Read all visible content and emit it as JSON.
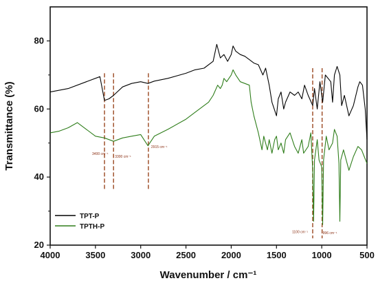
{
  "chart_data": {
    "type": "line",
    "xlabel": "Wavenumber / cm⁻¹",
    "ylabel": "Transmittance  (%)",
    "xlim": [
      4000,
      500
    ],
    "ylim": [
      20,
      90
    ],
    "x_ticks": [
      4000,
      3500,
      3000,
      2500,
      2000,
      1500,
      1000,
      500
    ],
    "y_ticks": [
      20,
      40,
      60,
      80
    ],
    "legend_position": "bottom-left",
    "colors": {
      "TPT-P": "#000000",
      "TPTH-P": "#2e7d1a",
      "annotation": "#a0522d"
    },
    "series": [
      {
        "name": "TPT-P",
        "color": "#000000",
        "points": [
          [
            4000,
            65
          ],
          [
            3800,
            66
          ],
          [
            3600,
            68
          ],
          [
            3450,
            69.5
          ],
          [
            3400,
            62.5
          ],
          [
            3350,
            63
          ],
          [
            3300,
            64
          ],
          [
            3200,
            66.5
          ],
          [
            3100,
            67.5
          ],
          [
            3000,
            68
          ],
          [
            2920,
            67.5
          ],
          [
            2850,
            68.2
          ],
          [
            2700,
            69
          ],
          [
            2500,
            70.5
          ],
          [
            2400,
            71.5
          ],
          [
            2300,
            72
          ],
          [
            2200,
            74
          ],
          [
            2160,
            79
          ],
          [
            2120,
            75
          ],
          [
            2080,
            76
          ],
          [
            2040,
            74
          ],
          [
            2000,
            76
          ],
          [
            1980,
            78.5
          ],
          [
            1950,
            77
          ],
          [
            1900,
            76
          ],
          [
            1850,
            75.5
          ],
          [
            1800,
            74.5
          ],
          [
            1750,
            73.5
          ],
          [
            1700,
            73
          ],
          [
            1650,
            70
          ],
          [
            1620,
            72
          ],
          [
            1580,
            67
          ],
          [
            1550,
            62
          ],
          [
            1500,
            58
          ],
          [
            1480,
            63
          ],
          [
            1450,
            65
          ],
          [
            1420,
            60
          ],
          [
            1400,
            62
          ],
          [
            1350,
            65
          ],
          [
            1300,
            64
          ],
          [
            1260,
            65
          ],
          [
            1220,
            63
          ],
          [
            1190,
            67
          ],
          [
            1150,
            64
          ],
          [
            1100,
            61
          ],
          [
            1080,
            66
          ],
          [
            1050,
            60
          ],
          [
            1020,
            68
          ],
          [
            990,
            62
          ],
          [
            960,
            70
          ],
          [
            900,
            68
          ],
          [
            880,
            62
          ],
          [
            860,
            70
          ],
          [
            830,
            72.5
          ],
          [
            800,
            70
          ],
          [
            780,
            61
          ],
          [
            750,
            64
          ],
          [
            700,
            58
          ],
          [
            650,
            61
          ],
          [
            600,
            66.5
          ],
          [
            580,
            68
          ],
          [
            550,
            67
          ],
          [
            520,
            60
          ],
          [
            500,
            51
          ]
        ]
      },
      {
        "name": "TPTH-P",
        "color": "#2e7d1a",
        "points": [
          [
            4000,
            53
          ],
          [
            3900,
            53.5
          ],
          [
            3800,
            54.5
          ],
          [
            3700,
            56
          ],
          [
            3600,
            54
          ],
          [
            3500,
            52
          ],
          [
            3400,
            51.5
          ],
          [
            3300,
            50.5
          ],
          [
            3200,
            51.5
          ],
          [
            3100,
            52
          ],
          [
            3000,
            52.5
          ],
          [
            2920,
            49.2
          ],
          [
            2850,
            52
          ],
          [
            2700,
            54
          ],
          [
            2500,
            57
          ],
          [
            2400,
            59
          ],
          [
            2300,
            61
          ],
          [
            2250,
            62
          ],
          [
            2200,
            64
          ],
          [
            2150,
            67
          ],
          [
            2120,
            66
          ],
          [
            2100,
            67
          ],
          [
            2080,
            69
          ],
          [
            2050,
            68
          ],
          [
            2000,
            70
          ],
          [
            1980,
            71.5
          ],
          [
            1950,
            70
          ],
          [
            1900,
            68
          ],
          [
            1850,
            67.5
          ],
          [
            1800,
            67
          ],
          [
            1780,
            62
          ],
          [
            1750,
            58
          ],
          [
            1700,
            53
          ],
          [
            1660,
            48
          ],
          [
            1640,
            52
          ],
          [
            1600,
            48
          ],
          [
            1580,
            51
          ],
          [
            1550,
            47
          ],
          [
            1520,
            51
          ],
          [
            1500,
            52
          ],
          [
            1480,
            48
          ],
          [
            1450,
            50
          ],
          [
            1420,
            47
          ],
          [
            1400,
            51
          ],
          [
            1350,
            53
          ],
          [
            1300,
            49
          ],
          [
            1260,
            47
          ],
          [
            1220,
            51
          ],
          [
            1200,
            47
          ],
          [
            1150,
            49
          ],
          [
            1120,
            53
          ],
          [
            1100,
            42
          ],
          [
            1090,
            27
          ],
          [
            1080,
            45
          ],
          [
            1050,
            51
          ],
          [
            1030,
            45
          ],
          [
            1000,
            43
          ],
          [
            990,
            26
          ],
          [
            980,
            45
          ],
          [
            950,
            52
          ],
          [
            920,
            48
          ],
          [
            880,
            50
          ],
          [
            860,
            54
          ],
          [
            830,
            52
          ],
          [
            810,
            44
          ],
          [
            800,
            27
          ],
          [
            790,
            45
          ],
          [
            760,
            48
          ],
          [
            700,
            42
          ],
          [
            650,
            46
          ],
          [
            600,
            49
          ],
          [
            560,
            48
          ],
          [
            530,
            46
          ],
          [
            500,
            44
          ]
        ]
      }
    ],
    "annotations": [
      {
        "x": 3400,
        "label": "3400 cm⁻¹"
      },
      {
        "x": 3300,
        "label": "3300 cm⁻¹"
      },
      {
        "x": 2915,
        "label": "2915 cm⁻¹"
      },
      {
        "x": 1100,
        "label": "1100 cm⁻¹"
      },
      {
        "x": 996,
        "label": "996 cm⁻¹"
      }
    ]
  }
}
